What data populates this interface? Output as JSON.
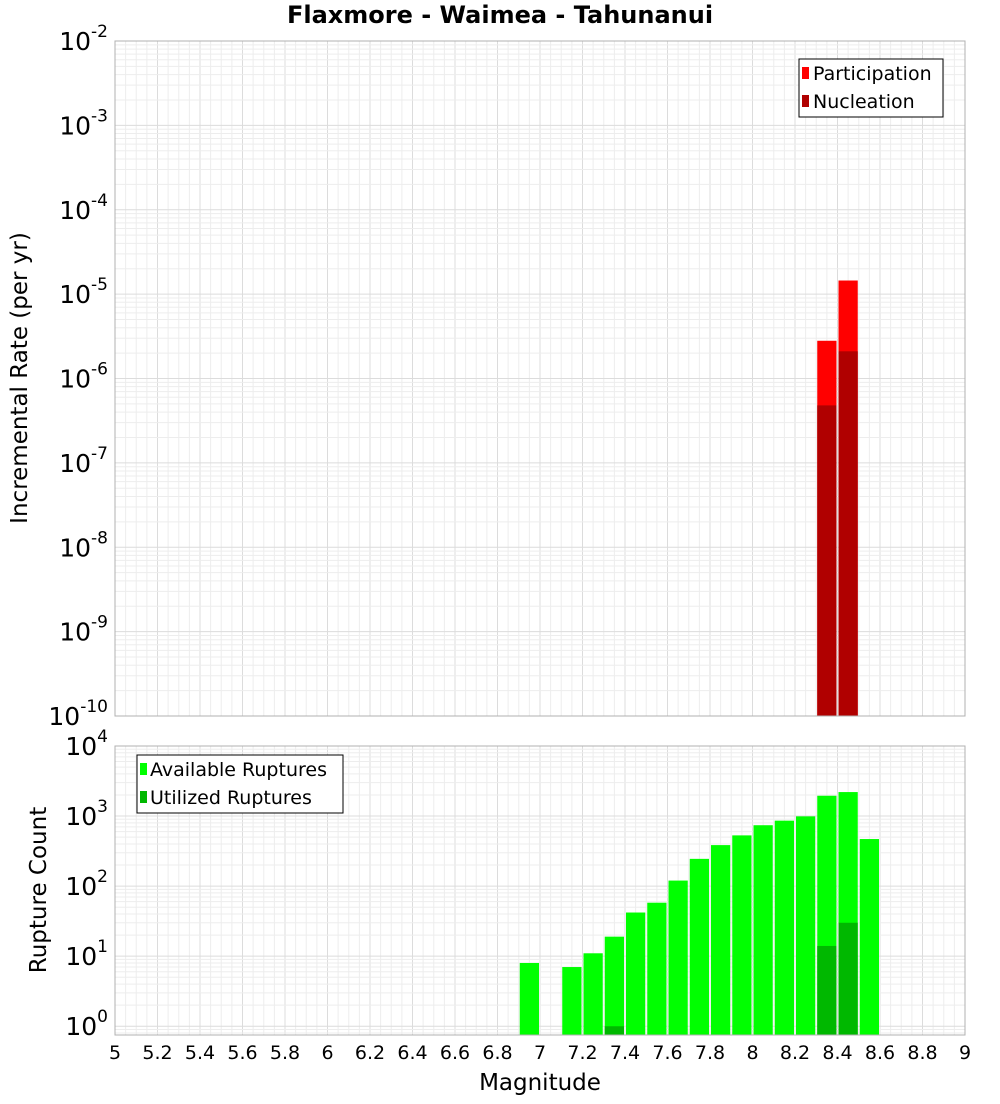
{
  "chart_data": [
    {
      "type": "bar",
      "title": "Flaxmore - Waimea - Tahunanui",
      "xlabel": "",
      "ylabel": "Incremental Rate (per yr)",
      "yscale": "log",
      "xlim": [
        5,
        9
      ],
      "ylim": [
        1e-10,
        0.01
      ],
      "y_tick_exponents": [
        -10,
        -9,
        -8,
        -7,
        -6,
        -5,
        -4,
        -3,
        -2
      ],
      "bin_width": 0.1,
      "legend": {
        "position": "top-right",
        "entries": [
          "Participation",
          "Nucleation"
        ]
      },
      "series": [
        {
          "name": "Participation",
          "color": "#ff0000",
          "x": [
            8.35,
            8.45
          ],
          "values": [
            2.8e-06,
            1.45e-05
          ]
        },
        {
          "name": "Nucleation",
          "color": "#b00000",
          "x": [
            8.35,
            8.45
          ],
          "values": [
            4.8e-07,
            2.1e-06
          ]
        }
      ]
    },
    {
      "type": "bar",
      "title": "",
      "xlabel": "Magnitude",
      "ylabel": "Rupture Count",
      "yscale": "log",
      "xlim": [
        5,
        9
      ],
      "ylim": [
        0.75,
        10000
      ],
      "y_tick_exponents": [
        0,
        1,
        2,
        3,
        4
      ],
      "x_ticks": [
        "5",
        "5.2",
        "5.4",
        "5.6",
        "5.8",
        "6",
        "6.2",
        "6.4",
        "6.6",
        "6.8",
        "7",
        "7.2",
        "7.4",
        "7.6",
        "7.8",
        "8",
        "8.2",
        "8.4",
        "8.6",
        "8.8",
        "9"
      ],
      "bin_width": 0.1,
      "legend": {
        "position": "top-left",
        "entries": [
          "Available Ruptures",
          "Utilized Ruptures"
        ]
      },
      "series": [
        {
          "name": "Available Ruptures",
          "color": "#00ff00",
          "x": [
            6.95,
            7.15,
            7.25,
            7.35,
            7.45,
            7.55,
            7.65,
            7.75,
            7.85,
            7.95,
            8.05,
            8.15,
            8.25,
            8.35,
            8.45,
            8.55
          ],
          "values": [
            8,
            7,
            11,
            19,
            42,
            58,
            120,
            245,
            385,
            530,
            740,
            860,
            990,
            1950,
            2200,
            470
          ]
        },
        {
          "name": "Utilized Ruptures",
          "color": "#00b800",
          "x": [
            7.35,
            8.35,
            8.45
          ],
          "values": [
            1,
            14,
            30
          ]
        }
      ]
    }
  ]
}
